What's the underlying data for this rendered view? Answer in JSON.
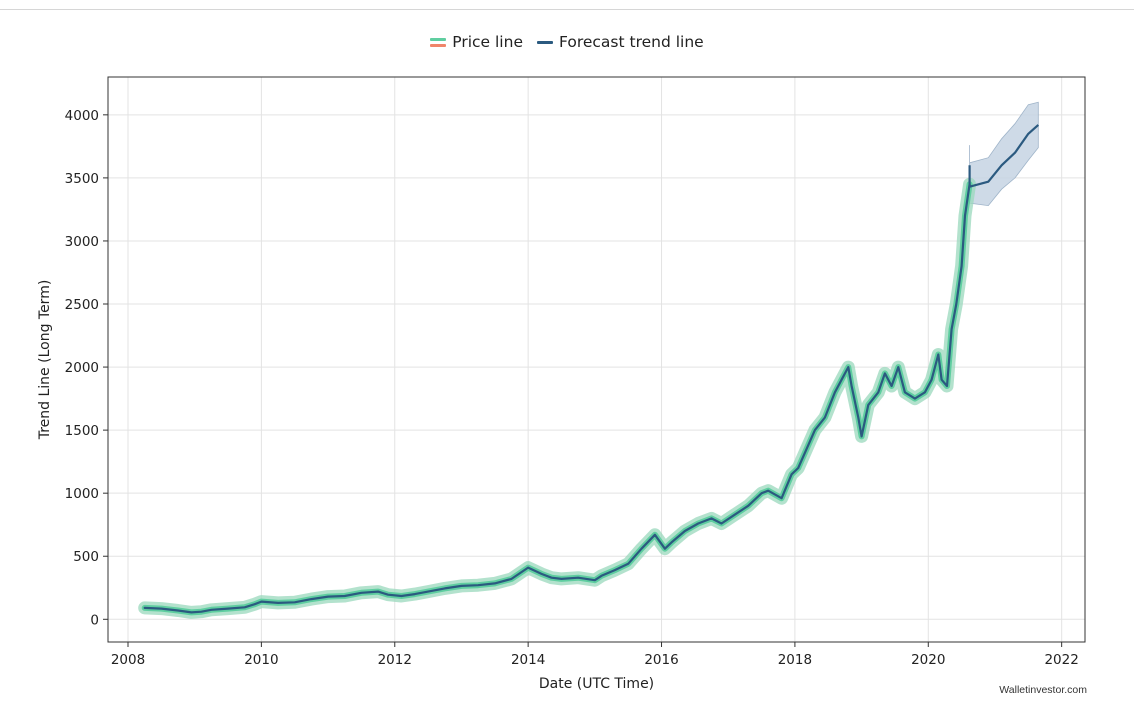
{
  "legend": {
    "price_label": "Price line",
    "forecast_label": "Forecast trend line"
  },
  "colors": {
    "price_line": "#5fcea0",
    "price_band": "#9ad8bc",
    "price_swatch_secondary": "#f0856a",
    "forecast_line": "#2b5a80",
    "forecast_band": "#c5d4e3",
    "grid": "#e3e3e3"
  },
  "watermark": "Walletinvestor.com",
  "chart_data": {
    "type": "line",
    "title": "",
    "xlabel": "Date (UTC Time)",
    "ylabel": "Trend Line (Long Term)",
    "xlim": [
      2007.7,
      2022.35
    ],
    "ylim": [
      -180,
      4300
    ],
    "x_ticks": [
      2008,
      2010,
      2012,
      2014,
      2016,
      2018,
      2020,
      2022
    ],
    "y_ticks": [
      0,
      500,
      1000,
      1500,
      2000,
      2500,
      3000,
      3500,
      4000
    ],
    "grid": true,
    "series": [
      {
        "name": "Price line",
        "x": [
          2008.25,
          2008.5,
          2008.75,
          2008.95,
          2009.1,
          2009.25,
          2009.5,
          2009.75,
          2009.9,
          2010.0,
          2010.25,
          2010.5,
          2010.75,
          2011.0,
          2011.25,
          2011.5,
          2011.75,
          2011.9,
          2012.1,
          2012.3,
          2012.5,
          2012.75,
          2013.0,
          2013.25,
          2013.5,
          2013.75,
          2014.0,
          2014.2,
          2014.35,
          2014.5,
          2014.75,
          2015.0,
          2015.1,
          2015.3,
          2015.5,
          2015.7,
          2015.9,
          2016.05,
          2016.15,
          2016.35,
          2016.55,
          2016.75,
          2016.9,
          2017.1,
          2017.3,
          2017.5,
          2017.6,
          2017.8,
          2017.95,
          2018.05,
          2018.2,
          2018.3,
          2018.45,
          2018.6,
          2018.7,
          2018.8,
          2018.85,
          2018.95,
          2019.0,
          2019.1,
          2019.25,
          2019.35,
          2019.45,
          2019.55,
          2019.65,
          2019.8,
          2019.95,
          2020.05,
          2020.15,
          2020.2,
          2020.28,
          2020.35,
          2020.42,
          2020.5,
          2020.55,
          2020.62
        ],
        "values": [
          90,
          85,
          70,
          55,
          60,
          75,
          85,
          95,
          120,
          140,
          130,
          135,
          160,
          180,
          185,
          210,
          220,
          195,
          185,
          200,
          220,
          245,
          265,
          270,
          285,
          320,
          410,
          360,
          330,
          320,
          330,
          310,
          345,
          390,
          440,
          560,
          670,
          560,
          610,
          700,
          760,
          800,
          760,
          830,
          900,
          1000,
          1020,
          960,
          1150,
          1200,
          1380,
          1500,
          1600,
          1800,
          1900,
          2000,
          1850,
          1600,
          1450,
          1700,
          1800,
          1950,
          1850,
          2000,
          1800,
          1750,
          1800,
          1900,
          2100,
          1900,
          1850,
          2300,
          2500,
          2800,
          3200,
          3450
        ]
      },
      {
        "name": "Forecast trend line",
        "x": [
          2020.62,
          2020.62,
          2020.9,
          2021.1,
          2021.3,
          2021.5,
          2021.65
        ],
        "values": [
          3600,
          3430,
          3470,
          3600,
          3700,
          3850,
          3920
        ],
        "band_upper": [
          3760,
          3620,
          3660,
          3810,
          3930,
          4080,
          4100
        ],
        "band_lower": [
          3460,
          3300,
          3280,
          3410,
          3500,
          3640,
          3740
        ]
      }
    ]
  }
}
